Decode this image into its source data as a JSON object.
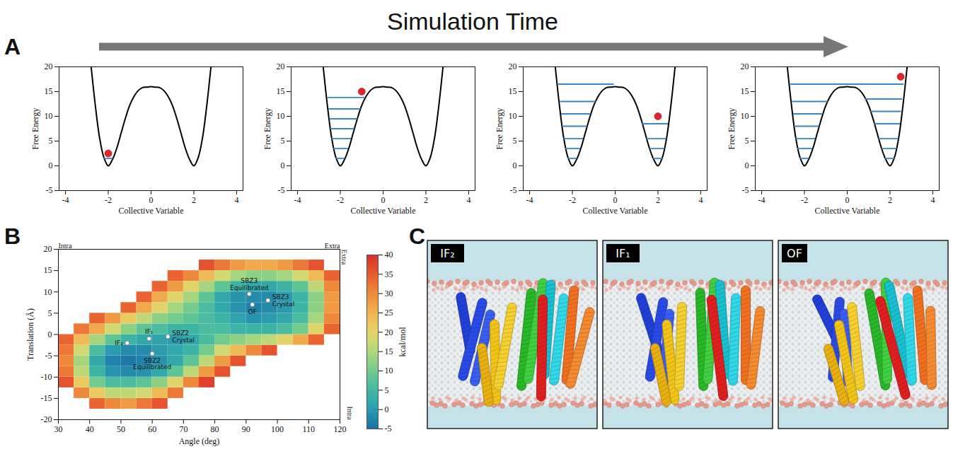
{
  "header": {
    "title": "Simulation Time"
  },
  "panel_labels": [
    "A",
    "B",
    "C"
  ],
  "chart_data": [
    {
      "type": "line",
      "x_label": "Collective Variable",
      "y_label": "Free Energy",
      "xlim": [
        -4.3,
        4.3
      ],
      "ylim": [
        -5,
        20
      ],
      "xticks": [
        -4,
        -2,
        0,
        2,
        4
      ],
      "yticks": [
        -5,
        0,
        5,
        10,
        15,
        20
      ],
      "series": [
        {
          "type": "line",
          "color": "#000000",
          "x": [
            -2.8,
            -2.6,
            -2.4,
            -2.2,
            -2,
            -1.8,
            -1.6,
            -1.4,
            -1.2,
            -1,
            -0.8,
            -0.6,
            -0.4,
            -0.2,
            0,
            0.2,
            0.4,
            0.6,
            0.8,
            1,
            1.2,
            1.4,
            1.6,
            1.8,
            2,
            2.2,
            2.4,
            2.6,
            2.8
          ],
          "values": [
            20,
            12,
            5.5,
            1.6,
            0,
            1.3,
            3.6,
            6.6,
            9.6,
            12.2,
            14,
            15.2,
            15.8,
            15.9,
            16,
            15.9,
            15.8,
            15.2,
            14,
            12.2,
            9.6,
            6.6,
            3.6,
            1.3,
            0,
            1.6,
            5.5,
            12,
            20
          ]
        },
        {
          "type": "rule",
          "color": "#3a86c6",
          "levels": [
            {
              "y": 1.5,
              "x1": -2.22,
              "x2": -1.78
            }
          ]
        },
        {
          "type": "scatter",
          "color": "#e3242b",
          "x": [
            -2
          ],
          "values": [
            2.5
          ]
        }
      ]
    },
    {
      "type": "line",
      "x_label": "Collective Variable",
      "y_label": "Free Energy",
      "xlim": [
        -4.3,
        4.3
      ],
      "ylim": [
        -5,
        20
      ],
      "xticks": [
        -4,
        -2,
        0,
        2,
        4
      ],
      "yticks": [
        -5,
        0,
        5,
        10,
        15,
        20
      ],
      "series": [
        {
          "type": "line",
          "color": "#000000",
          "x": [
            -2.8,
            -2.6,
            -2.4,
            -2.2,
            -2,
            -1.8,
            -1.6,
            -1.4,
            -1.2,
            -1,
            -0.8,
            -0.6,
            -0.4,
            -0.2,
            0,
            0.2,
            0.4,
            0.6,
            0.8,
            1,
            1.2,
            1.4,
            1.6,
            1.8,
            2,
            2.2,
            2.4,
            2.6,
            2.8
          ],
          "values": [
            20,
            12,
            5.5,
            1.6,
            0,
            1.3,
            3.6,
            6.6,
            9.6,
            12.2,
            14,
            15.2,
            15.8,
            15.9,
            16,
            15.9,
            15.8,
            15.2,
            14,
            12.2,
            9.6,
            6.6,
            3.6,
            1.3,
            0,
            1.6,
            5.5,
            12,
            20
          ]
        },
        {
          "type": "rule",
          "color": "#3a86c6",
          "levels": [
            {
              "y": 1.5,
              "x1": -2.22,
              "x2": -1.78
            },
            {
              "y": 3.5,
              "x1": -2.32,
              "x2": -1.62
            },
            {
              "y": 5.5,
              "x1": -2.4,
              "x2": -1.48
            },
            {
              "y": 7.5,
              "x1": -2.45,
              "x2": -1.34
            },
            {
              "y": 9.5,
              "x1": -2.5,
              "x2": -1.2
            },
            {
              "y": 11.5,
              "x1": -2.55,
              "x2": -1.04
            },
            {
              "y": 13.8,
              "x1": -2.58,
              "x2": -0.82
            }
          ]
        },
        {
          "type": "scatter",
          "color": "#e3242b",
          "x": [
            -1
          ],
          "values": [
            15
          ]
        }
      ]
    },
    {
      "type": "line",
      "x_label": "Collective Variable",
      "y_label": "Free Energy",
      "xlim": [
        -4.3,
        4.3
      ],
      "ylim": [
        -5,
        20
      ],
      "xticks": [
        -4,
        -2,
        0,
        2,
        4
      ],
      "yticks": [
        -5,
        0,
        5,
        10,
        15,
        20
      ],
      "series": [
        {
          "type": "line",
          "color": "#000000",
          "x": [
            -2.8,
            -2.6,
            -2.4,
            -2.2,
            -2,
            -1.8,
            -1.6,
            -1.4,
            -1.2,
            -1,
            -0.8,
            -0.6,
            -0.4,
            -0.2,
            0,
            0.2,
            0.4,
            0.6,
            0.8,
            1,
            1.2,
            1.4,
            1.6,
            1.8,
            2,
            2.2,
            2.4,
            2.6,
            2.8
          ],
          "values": [
            20,
            12,
            5.5,
            1.6,
            0,
            1.3,
            3.6,
            6.6,
            9.6,
            12.2,
            14,
            15.2,
            15.8,
            15.9,
            16,
            15.9,
            15.8,
            15.2,
            14,
            12.2,
            9.6,
            6.6,
            3.6,
            1.3,
            0,
            1.6,
            5.5,
            12,
            20
          ]
        },
        {
          "type": "rule",
          "color": "#3a86c6",
          "levels": [
            {
              "y": 1.5,
              "x1": -2.22,
              "x2": -1.78
            },
            {
              "y": 3.5,
              "x1": -2.32,
              "x2": -1.62
            },
            {
              "y": 5.5,
              "x1": -2.4,
              "x2": -1.48
            },
            {
              "y": 8,
              "x1": -2.47,
              "x2": -1.3
            },
            {
              "y": 10.5,
              "x1": -2.52,
              "x2": -1.14
            },
            {
              "y": 13,
              "x1": -2.57,
              "x2": -0.9
            },
            {
              "y": 16.5,
              "x1": -2.65,
              "x2": -0.05
            },
            {
              "y": 1.5,
              "x1": 1.78,
              "x2": 2.22
            },
            {
              "y": 3.5,
              "x1": 1.62,
              "x2": 2.32
            },
            {
              "y": 5.5,
              "x1": 1.48,
              "x2": 2.4
            },
            {
              "y": 8.5,
              "x1": 1.27,
              "x2": 2.48
            }
          ]
        },
        {
          "type": "scatter",
          "color": "#e3242b",
          "x": [
            2
          ],
          "values": [
            10
          ]
        }
      ]
    },
    {
      "type": "line",
      "x_label": "Collective Variable",
      "y_label": "Free Energy",
      "xlim": [
        -4.3,
        4.3
      ],
      "ylim": [
        -5,
        20
      ],
      "xticks": [
        -4,
        -2,
        0,
        2,
        4
      ],
      "yticks": [
        -5,
        0,
        5,
        10,
        15,
        20
      ],
      "series": [
        {
          "type": "line",
          "color": "#000000",
          "x": [
            -2.8,
            -2.6,
            -2.4,
            -2.2,
            -2,
            -1.8,
            -1.6,
            -1.4,
            -1.2,
            -1,
            -0.8,
            -0.6,
            -0.4,
            -0.2,
            0,
            0.2,
            0.4,
            0.6,
            0.8,
            1,
            1.2,
            1.4,
            1.6,
            1.8,
            2,
            2.2,
            2.4,
            2.6,
            2.8
          ],
          "values": [
            20,
            12,
            5.5,
            1.6,
            0,
            1.3,
            3.6,
            6.6,
            9.6,
            12.2,
            14,
            15.2,
            15.8,
            15.9,
            16,
            15.9,
            15.8,
            15.2,
            14,
            12.2,
            9.6,
            6.6,
            3.6,
            1.3,
            0,
            1.6,
            5.5,
            12,
            20
          ]
        },
        {
          "type": "rule",
          "color": "#3a86c6",
          "levels": [
            {
              "y": 1.5,
              "x1": -2.22,
              "x2": -1.78
            },
            {
              "y": 3.5,
              "x1": -2.32,
              "x2": -1.62
            },
            {
              "y": 5.5,
              "x1": -2.4,
              "x2": -1.48
            },
            {
              "y": 8,
              "x1": -2.47,
              "x2": -1.3
            },
            {
              "y": 10.5,
              "x1": -2.52,
              "x2": -1.14
            },
            {
              "y": 13,
              "x1": -2.57,
              "x2": -0.9
            },
            {
              "y": 16.5,
              "x1": -2.65,
              "x2": 2.65
            },
            {
              "y": 1.5,
              "x1": 1.78,
              "x2": 2.22
            },
            {
              "y": 3.5,
              "x1": 1.62,
              "x2": 2.32
            },
            {
              "y": 5.5,
              "x1": 1.48,
              "x2": 2.4
            },
            {
              "y": 8.5,
              "x1": 1.27,
              "x2": 2.48
            },
            {
              "y": 11,
              "x1": 1.1,
              "x2": 2.53
            },
            {
              "y": 13.5,
              "x1": 0.86,
              "x2": 2.58
            }
          ]
        },
        {
          "type": "scatter",
          "color": "#e3242b",
          "x": [
            2.5
          ],
          "values": [
            18
          ]
        }
      ]
    },
    {
      "type": "heatmap",
      "x_label": "Angle (deg)",
      "y_label": "Translation (Å)",
      "xlim": [
        30,
        120
      ],
      "ylim": [
        -20,
        20
      ],
      "xticks": [
        30,
        40,
        50,
        60,
        70,
        80,
        90,
        100,
        110,
        120
      ],
      "yticks": [
        -20,
        -15,
        -10,
        -5,
        0,
        5,
        10,
        15,
        20
      ],
      "corner_labels": {
        "top_left": "Intra",
        "top_right": "Extra",
        "right_top": "Extra",
        "right_bottom": "Intra"
      },
      "x_edges": [
        30,
        35,
        40,
        45,
        50,
        55,
        60,
        65,
        70,
        75,
        80,
        85,
        90,
        95,
        100,
        105,
        110,
        115,
        120
      ],
      "y_edges": [
        -17.5,
        -15,
        -12.5,
        -10,
        -7.5,
        -5,
        -2.5,
        0,
        2.5,
        5,
        7.5,
        10,
        12.5,
        15,
        17.5
      ],
      "z": [
        [
          null,
          null,
          34,
          30,
          28,
          32,
          36,
          null,
          null,
          null,
          null,
          null,
          null,
          null,
          null,
          null,
          null,
          null
        ],
        [
          null,
          30,
          22,
          16,
          16,
          18,
          24,
          32,
          null,
          null,
          null,
          null,
          null,
          null,
          null,
          null,
          null,
          null
        ],
        [
          36,
          22,
          10,
          6,
          6,
          8,
          12,
          20,
          30,
          38,
          null,
          null,
          null,
          null,
          null,
          null,
          null,
          null
        ],
        [
          32,
          16,
          4,
          -1,
          -2,
          -1,
          2,
          8,
          16,
          28,
          36,
          null,
          null,
          null,
          null,
          null,
          null,
          null
        ],
        [
          30,
          14,
          2,
          -3,
          -4,
          -3,
          -1,
          2,
          8,
          16,
          28,
          36,
          null,
          null,
          null,
          null,
          null,
          null
        ],
        [
          32,
          18,
          6,
          0,
          -2,
          -2,
          0,
          2,
          4,
          10,
          18,
          24,
          30,
          36,
          null,
          null,
          null,
          null
        ],
        [
          34,
          24,
          14,
          8,
          4,
          2,
          1,
          0,
          2,
          6,
          10,
          12,
          14,
          16,
          20,
          26,
          34,
          null
        ],
        [
          null,
          32,
          26,
          18,
          12,
          8,
          6,
          4,
          4,
          6,
          6,
          4,
          4,
          4,
          6,
          10,
          20,
          34
        ],
        [
          null,
          null,
          34,
          28,
          22,
          16,
          12,
          10,
          8,
          6,
          4,
          1,
          -1,
          0,
          2,
          6,
          14,
          30
        ],
        [
          null,
          null,
          null,
          null,
          34,
          26,
          20,
          14,
          10,
          6,
          2,
          -1,
          -3,
          -2,
          0,
          4,
          12,
          28
        ],
        [
          null,
          null,
          null,
          null,
          null,
          34,
          26,
          20,
          14,
          8,
          2,
          -1,
          -2,
          -2,
          0,
          4,
          12,
          28
        ],
        [
          null,
          null,
          null,
          null,
          null,
          null,
          34,
          28,
          20,
          14,
          8,
          4,
          2,
          2,
          4,
          8,
          16,
          30
        ],
        [
          null,
          null,
          null,
          null,
          null,
          null,
          null,
          34,
          30,
          24,
          18,
          14,
          12,
          12,
          14,
          18,
          24,
          34
        ],
        [
          null,
          null,
          null,
          null,
          null,
          null,
          null,
          null,
          null,
          36,
          32,
          28,
          26,
          26,
          28,
          32,
          36,
          null
        ]
      ],
      "colorbar": {
        "label": "kcal/mol",
        "range": [
          -5,
          40
        ],
        "ticks": [
          -5,
          0,
          5,
          10,
          15,
          20,
          25,
          30,
          35,
          40
        ]
      },
      "points": [
        {
          "x": 52,
          "y": -2,
          "label": "IF₂"
        },
        {
          "x": 59,
          "y": -1,
          "label": "IF₁"
        },
        {
          "x": 65,
          "y": -0.5,
          "label": "SBZ2\nCrystal"
        },
        {
          "x": 60,
          "y": -4.5,
          "label": "SBZ2\nEquilibrated"
        },
        {
          "x": 91,
          "y": 9.5,
          "label": "SBZ3\nEquilibrated"
        },
        {
          "x": 97,
          "y": 8,
          "label": "SBZ3\nCrystal"
        },
        {
          "x": 92,
          "y": 7,
          "label": "OF"
        }
      ]
    }
  ],
  "panel_c": {
    "images": [
      {
        "label": "IF₂"
      },
      {
        "label": "IF₁"
      },
      {
        "label": "OF"
      }
    ]
  }
}
